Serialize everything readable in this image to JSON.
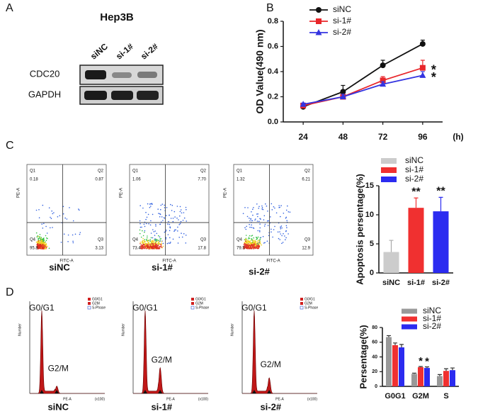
{
  "panel_labels": [
    "A",
    "B",
    "C",
    "D"
  ],
  "blot": {
    "cell_line": "Hep3B",
    "lanes": [
      "siNC",
      "si-1#",
      "si-2#"
    ],
    "proteins": [
      "CDC20",
      "GAPDH"
    ]
  },
  "flow": {
    "x_label": "FITC-A",
    "y_label": "PE-A",
    "plots": [
      {
        "sample": "siNC",
        "quadrants": [
          "Q1",
          "Q2",
          "Q3",
          "Q4"
        ],
        "percents": [
          "0.18",
          "0.87",
          "3.13",
          "95.8"
        ]
      },
      {
        "sample": "si-1#",
        "quadrants": [
          "Q1",
          "Q2",
          "Q3",
          "Q4"
        ],
        "percents": [
          "1.06",
          "7.70",
          "17.8",
          "73.4"
        ]
      },
      {
        "sample": "si-2#",
        "quadrants": [
          "Q1",
          "Q2",
          "Q3",
          "Q4"
        ],
        "percents": [
          "1.32",
          "6.21",
          "12.9",
          "79.5"
        ]
      }
    ]
  },
  "cycle": {
    "x_label": "PE-A",
    "x_unit": "(x100)",
    "y_label": "Number",
    "legend": [
      "G0/G1",
      "G2M",
      "S-Phase"
    ],
    "plots": [
      {
        "sample": "siNC",
        "peaks": [
          "G0/G1",
          "G2/M"
        ]
      },
      {
        "sample": "si-1#",
        "peaks": [
          "G0/G1",
          "G2/M"
        ]
      },
      {
        "sample": "si-2#",
        "peaks": [
          "G0/G1",
          "G2/M"
        ]
      }
    ]
  },
  "chart_data": [
    {
      "type": "line",
      "y_label": "OD Value(490 nm)",
      "x_unit": "(h)",
      "categories": [
        "24",
        "48",
        "72",
        "96"
      ],
      "series": [
        {
          "name": "siNC",
          "color": "#111111",
          "marker": "circle",
          "values": [
            0.12,
            0.24,
            0.45,
            0.62
          ],
          "errors": [
            0.01,
            0.05,
            0.04,
            0.03
          ]
        },
        {
          "name": "si-1#",
          "color": "#e8262a",
          "marker": "square",
          "values": [
            0.13,
            0.2,
            0.33,
            0.43
          ],
          "errors": [
            0.01,
            0.02,
            0.03,
            0.06
          ]
        },
        {
          "name": "si-2#",
          "color": "#3434e0",
          "marker": "triangle",
          "values": [
            0.14,
            0.2,
            0.3,
            0.37
          ],
          "errors": [
            0.01,
            0.02,
            0.02,
            0.03
          ]
        }
      ],
      "ylim": [
        0,
        0.8
      ],
      "yticks": [
        {
          "value": 0,
          "label": "0.0"
        },
        0.2,
        0.4,
        0.6,
        0.8
      ],
      "annotations": [
        "*",
        "*"
      ]
    },
    {
      "type": "bar",
      "y_label": "Apoptosis persentage(%)",
      "categories": [
        "siNC",
        "si-1#",
        "si-2#"
      ],
      "values": [
        3.6,
        11.2,
        10.6
      ],
      "errors": [
        2.0,
        1.7,
        2.4
      ],
      "colors": [
        "#cccccc",
        "#f03030",
        "#2b2bf0"
      ],
      "ylim": [
        0,
        15
      ],
      "yticks": [
        0,
        5,
        10,
        15
      ],
      "annotations": [
        "**",
        "**"
      ]
    },
    {
      "type": "grouped-bar",
      "y_label": "Persentage(%)",
      "categories": [
        "G0G1",
        "G2M",
        "S"
      ],
      "series": [
        {
          "name": "siNC",
          "color": "#999999",
          "values": [
            67,
            17,
            14
          ],
          "errors": [
            2,
            1,
            2
          ]
        },
        {
          "name": "si-1#",
          "color": "#f03030",
          "values": [
            56,
            26,
            21
          ],
          "errors": [
            3,
            1,
            3
          ]
        },
        {
          "name": "si-2#",
          "color": "#2b2bf0",
          "values": [
            53,
            25,
            22
          ],
          "errors": [
            4,
            1.5,
            3
          ]
        }
      ],
      "ylim": [
        0,
        80
      ],
      "yticks": [
        0,
        20,
        40,
        60,
        80
      ],
      "annotations": [
        "*",
        "*"
      ]
    }
  ]
}
